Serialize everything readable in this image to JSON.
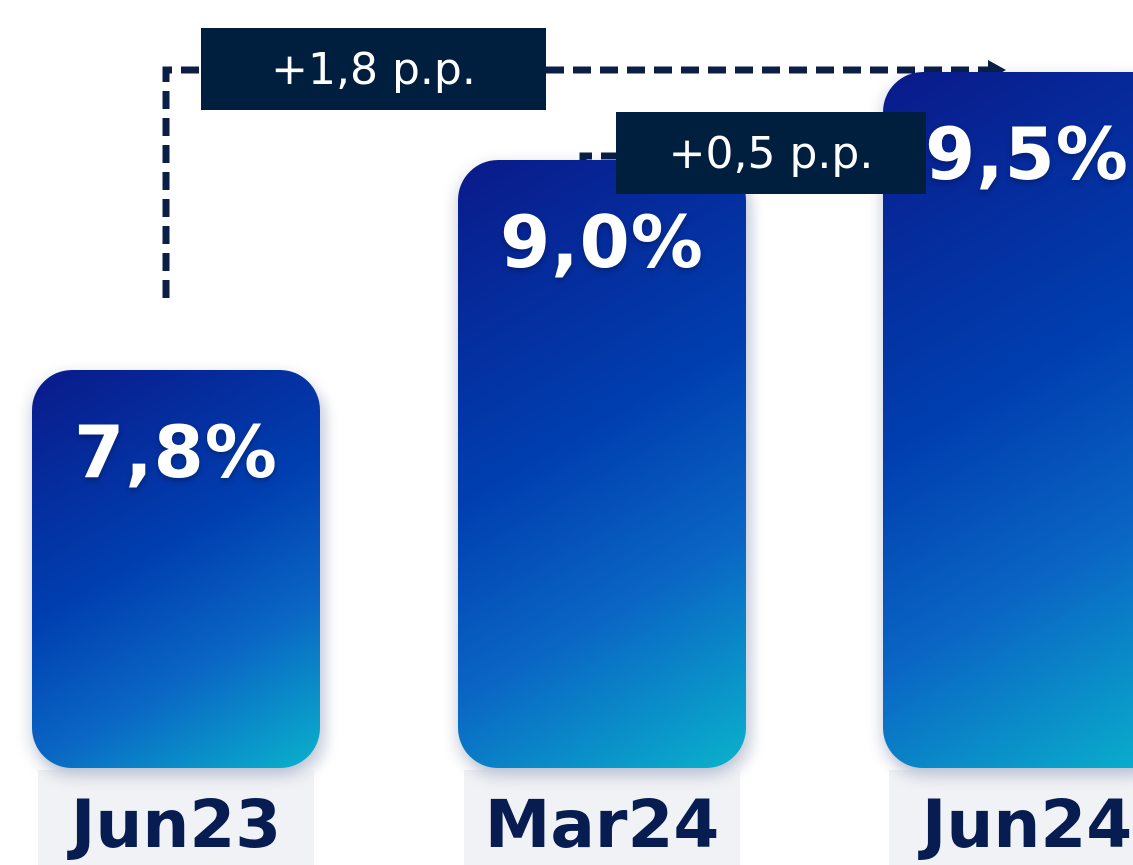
{
  "chart_data": {
    "type": "bar",
    "categories": [
      "Jun23",
      "Mar24",
      "Jun24"
    ],
    "values": [
      7.8,
      9.0,
      9.5
    ],
    "value_labels": [
      "7,8%",
      "9,0%",
      "9,5%"
    ],
    "title": "",
    "xlabel": "",
    "ylabel": "",
    "annotations": [
      {
        "text": "+1,8 p.p.",
        "from": "Jun23",
        "to": "Jun24"
      },
      {
        "text": "+0,5 p.p.",
        "from": "Mar24",
        "to": "Jun24"
      }
    ],
    "grid": false,
    "legend": "none"
  },
  "colors": {
    "bar_gradient_start": "#0a1a8a",
    "bar_gradient_end": "#0ab2cc",
    "label_color": "#071d52",
    "annotation_box": "#001e3e",
    "connector": "#0b1e46"
  }
}
